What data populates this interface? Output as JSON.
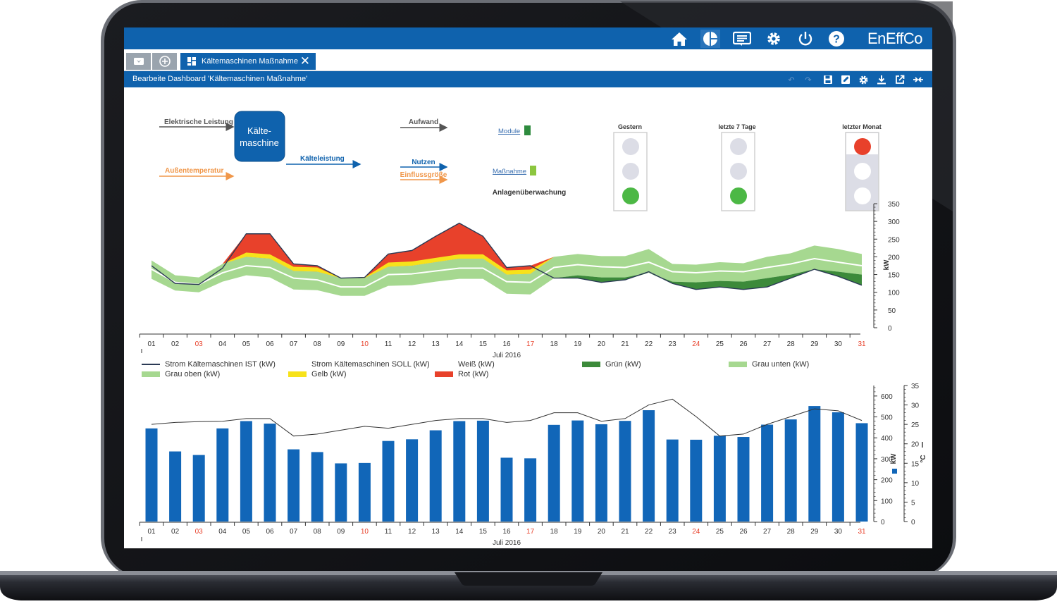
{
  "app": {
    "brand": "EnEffCo",
    "tab_label": "Kältemaschinen Maßnahme",
    "edit_title": "Bearbeite Dashboard 'Kältemaschinen Maßnahme'"
  },
  "topbar_icons": [
    "home-icon",
    "dashboard-icon",
    "report-icon",
    "settings-icon",
    "power-icon",
    "help-icon"
  ],
  "edit_icons": [
    "undo-icon",
    "redo-icon",
    "save-icon",
    "edit-icon",
    "gear-icon",
    "download-icon",
    "external-link-icon",
    "collapse-icon"
  ],
  "diagram": {
    "machine": [
      "Kälte-",
      "maschine"
    ],
    "inputs": [
      "Elektrische Leistung",
      "Außentemperatur"
    ],
    "output": "Kälteleistung",
    "legend": [
      "Aufwand",
      "Nutzen",
      "Einflussgröße"
    ],
    "links": [
      "Module",
      "Maßnahme"
    ],
    "colors": {
      "aufwand": "#555555",
      "nutzen": "#0f62ad",
      "einfluss": "#f0974a",
      "module": "#2e8b3e",
      "massnahme": "#8cc63f"
    }
  },
  "traffic_lights": [
    {
      "label": "Gestern",
      "states": [
        "off",
        "off",
        "green"
      ]
    },
    {
      "label": "letzte 7 Tage",
      "states": [
        "off",
        "off",
        "green"
      ]
    },
    {
      "label": "letzter Monat",
      "states": [
        "red",
        "white",
        "white"
      ]
    }
  ],
  "chart1": {
    "title": "Anlagenüberwachung",
    "xlabel": "Juli 2016",
    "ylabel": "kW",
    "yticks": [
      0,
      50,
      100,
      150,
      200,
      250,
      300,
      350
    ]
  },
  "days": [
    "01",
    "02",
    "03",
    "04",
    "05",
    "06",
    "07",
    "08",
    "09",
    "10",
    "11",
    "12",
    "13",
    "14",
    "15",
    "16",
    "17",
    "18",
    "19",
    "20",
    "21",
    "22",
    "23",
    "24",
    "25",
    "26",
    "27",
    "28",
    "29",
    "30",
    "31"
  ],
  "weekend_days": [
    "03",
    "10",
    "17",
    "24",
    "31"
  ],
  "legend1": [
    {
      "label": "Strom Kältemaschinen IST (kW)",
      "type": "line",
      "color": "#2b3a55"
    },
    {
      "label": "Strom Kältemaschinen SOLL (kW)",
      "type": "line",
      "color": "#ffffff"
    },
    {
      "label": "Weiß (kW)",
      "type": "line",
      "color": "#ffffff"
    },
    {
      "label": "Grün (kW)",
      "type": "area",
      "color": "#3c8a3a"
    },
    {
      "label": "Grau unten (kW)",
      "type": "area",
      "color": "#a6d890"
    },
    {
      "label": "Grau oben (kW)",
      "type": "area",
      "color": "#a6d890"
    },
    {
      "label": "Gelb (kW)",
      "type": "area",
      "color": "#f7e21a"
    },
    {
      "label": "Rot (kW)",
      "type": "area",
      "color": "#e8412b"
    }
  ],
  "chart_data": [
    {
      "type": "area",
      "title": "Anlagenüberwachung",
      "xlabel": "Juli 2016",
      "ylabel": "kW",
      "ylim": [
        0,
        350
      ],
      "x": [
        "01",
        "02",
        "03",
        "04",
        "05",
        "06",
        "07",
        "08",
        "09",
        "10",
        "11",
        "12",
        "13",
        "14",
        "15",
        "16",
        "17",
        "18",
        "19",
        "20",
        "21",
        "22",
        "23",
        "24",
        "25",
        "26",
        "27",
        "28",
        "29",
        "30",
        "31"
      ],
      "series": [
        {
          "name": "Strom Kältemaschinen IST (kW)",
          "values": [
            175,
            125,
            122,
            168,
            265,
            265,
            180,
            175,
            140,
            142,
            208,
            218,
            258,
            295,
            258,
            170,
            175,
            140,
            140,
            128,
            135,
            158,
            125,
            108,
            115,
            108,
            115,
            140,
            165,
            145,
            120
          ]
        },
        {
          "name": "Strom Kältemaschinen SOLL (kW)",
          "values": [
            165,
            128,
            122,
            155,
            175,
            170,
            140,
            135,
            115,
            115,
            150,
            152,
            160,
            168,
            168,
            130,
            128,
            170,
            178,
            172,
            170,
            185,
            158,
            155,
            160,
            158,
            170,
            180,
            195,
            185,
            175
          ]
        },
        {
          "name": "Grau unten (kW)",
          "values": [
            138,
            105,
            100,
            130,
            148,
            142,
            108,
            106,
            90,
            90,
            118,
            120,
            130,
            138,
            138,
            96,
            94,
            140,
            148,
            142,
            142,
            155,
            130,
            128,
            132,
            130,
            140,
            150,
            165,
            158,
            150
          ]
        },
        {
          "name": "Grau oben (kW)",
          "values": [
            190,
            148,
            142,
            180,
            200,
            195,
            160,
            158,
            140,
            140,
            172,
            175,
            185,
            195,
            195,
            150,
            152,
            200,
            208,
            202,
            202,
            222,
            180,
            178,
            185,
            182,
            200,
            210,
            232,
            222,
            208
          ]
        }
      ]
    },
    {
      "type": "bar",
      "xlabel": "Juli 2016",
      "ylabel": "kW",
      "ylabel_right": "°C",
      "ylim": [
        0,
        650
      ],
      "ylim_right": [
        0,
        35
      ],
      "yticks": [
        0,
        100,
        200,
        300,
        400,
        500,
        600
      ],
      "yticks_right": [
        0,
        5,
        10,
        15,
        20,
        25,
        30,
        35
      ],
      "x": [
        "01",
        "02",
        "03",
        "04",
        "05",
        "06",
        "07",
        "08",
        "09",
        "10",
        "11",
        "12",
        "13",
        "14",
        "15",
        "16",
        "17",
        "18",
        "19",
        "20",
        "21",
        "22",
        "23",
        "24",
        "25",
        "26",
        "27",
        "28",
        "29",
        "30",
        "31"
      ],
      "series": [
        {
          "name": "kW",
          "values": [
            445,
            335,
            318,
            445,
            480,
            468,
            345,
            332,
            278,
            280,
            385,
            393,
            436,
            480,
            482,
            305,
            302,
            462,
            483,
            465,
            481,
            532,
            392,
            391,
            410,
            404,
            463,
            488,
            552,
            522,
            470
          ]
        },
        {
          "name": "°C",
          "values": [
            25,
            25.5,
            25.7,
            25.8,
            26.5,
            26.5,
            22,
            22.5,
            23.5,
            24.5,
            24,
            25,
            26,
            26.5,
            26.5,
            25.5,
            26,
            28,
            28,
            25.8,
            26.5,
            30,
            31.5,
            27,
            22,
            22.5,
            25,
            27,
            29,
            28.5,
            26
          ]
        }
      ]
    }
  ]
}
